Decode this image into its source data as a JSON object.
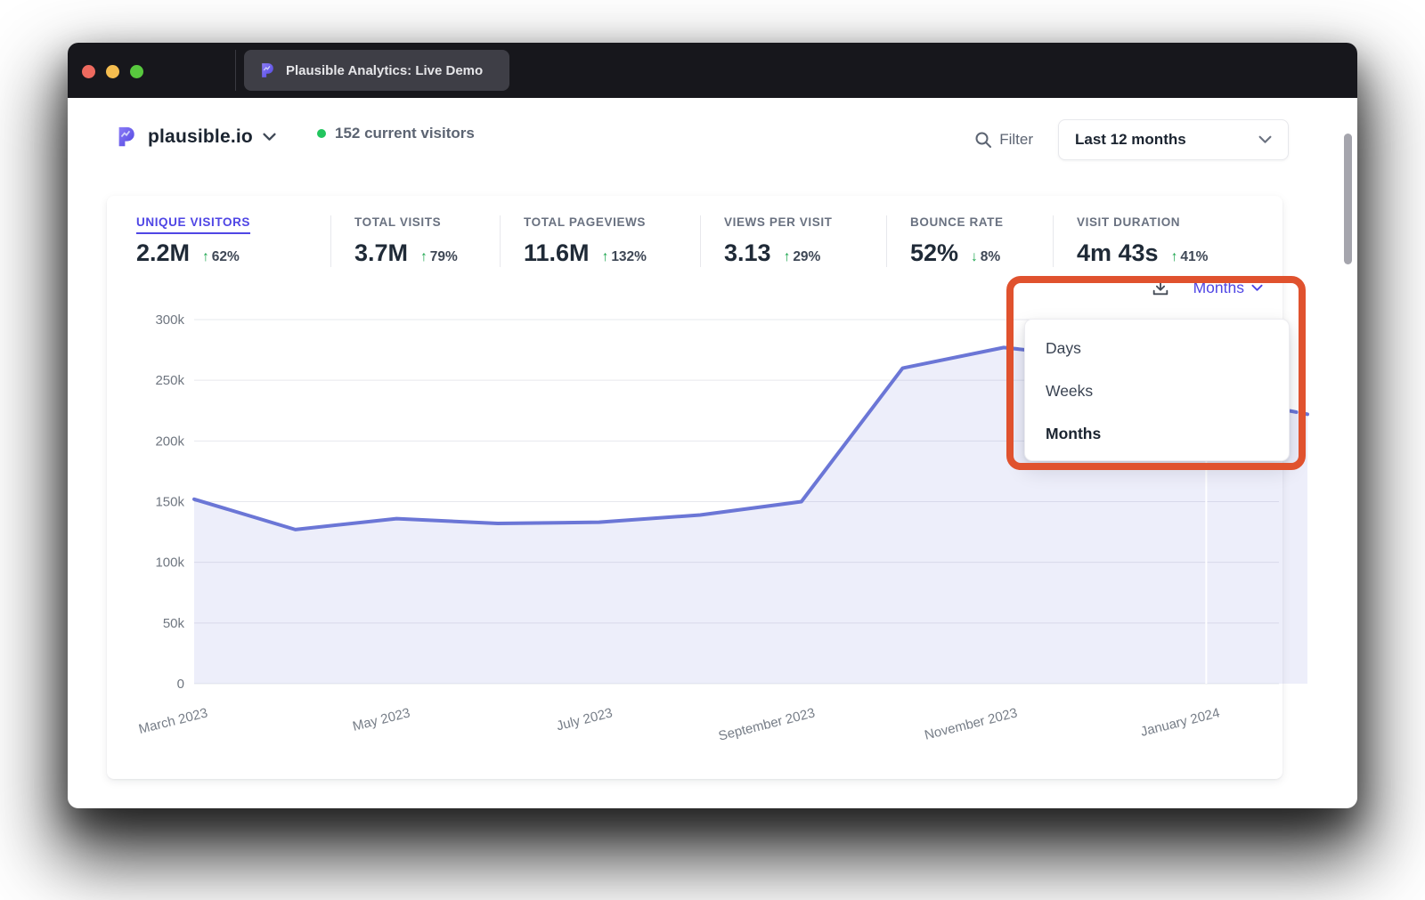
{
  "browser": {
    "tab_title": "Plausible Analytics: Live Demo",
    "traffic_lights": [
      "close",
      "minimize",
      "zoom"
    ]
  },
  "header": {
    "site_name": "plausible.io",
    "current_visitors": "152 current visitors",
    "filter_label": "Filter",
    "date_range_selected": "Last 12 months"
  },
  "stats": {
    "items": [
      {
        "label": "UNIQUE VISITORS",
        "value": "2.2M",
        "arrow": "↑",
        "change": "62%",
        "direction": "up",
        "active": true
      },
      {
        "label": "TOTAL VISITS",
        "value": "3.7M",
        "arrow": "↑",
        "change": "79%",
        "direction": "up",
        "active": false
      },
      {
        "label": "TOTAL PAGEVIEWS",
        "value": "11.6M",
        "arrow": "↑",
        "change": "132%",
        "direction": "up",
        "active": false
      },
      {
        "label": "VIEWS PER VISIT",
        "value": "3.13",
        "arrow": "↑",
        "change": "29%",
        "direction": "up",
        "active": false
      },
      {
        "label": "BOUNCE RATE",
        "value": "52%",
        "arrow": "↓",
        "change": "8%",
        "direction": "down",
        "active": false
      },
      {
        "label": "VISIT DURATION",
        "value": "4m 43s",
        "arrow": "↑",
        "change": "41%",
        "direction": "up",
        "active": false
      }
    ]
  },
  "interval_dropdown": {
    "selected": "Months",
    "options": [
      "Days",
      "Weeks",
      "Months"
    ]
  },
  "annotation": {
    "type": "highlight-box",
    "color": "#e0522e",
    "target": "interval-dropdown"
  },
  "icons": {
    "tab_favicon": "plausible-logo",
    "site_logo": "plausible-logo",
    "filter": "magnifier",
    "range": "chevron-down",
    "export": "download-tray-arrow",
    "interval": "chevron-down"
  },
  "colors": {
    "accent": "#4f46e5",
    "line": "#6b76d6",
    "positive": "#16a34a",
    "annotation": "#e0522e",
    "titlebar": "#17171c",
    "live_dot": "#22c55e"
  },
  "chart_data": {
    "type": "area",
    "title": "Unique visitors over last 12 months",
    "x": [
      "March 2023",
      "April 2023",
      "May 2023",
      "June 2023",
      "July 2023",
      "August 2023",
      "September 2023",
      "October 2023",
      "November 2023",
      "December 2023",
      "January 2024",
      "February 2024"
    ],
    "series": [
      {
        "name": "Unique visitors",
        "values": [
          152000,
          127000,
          136000,
          132000,
          133000,
          139000,
          150000,
          260000,
          277000,
          268000,
          238000,
          222000
        ]
      }
    ],
    "visible_x_labels": [
      "March 2023",
      "May 2023",
      "July 2023",
      "September 2023",
      "November 2023",
      "January 2024"
    ],
    "ylim": [
      0,
      300000
    ],
    "yticks": [
      0,
      50000,
      100000,
      150000,
      200000,
      250000,
      300000
    ],
    "ytick_labels": [
      "0",
      "50k",
      "100k",
      "150k",
      "200k",
      "250k",
      "300k"
    ],
    "grid": "horizontal",
    "legend": "none",
    "last_segment_dashed": true,
    "line_color": "#6b76d6",
    "fill_color": "rgba(107,118,214,0.12)"
  }
}
